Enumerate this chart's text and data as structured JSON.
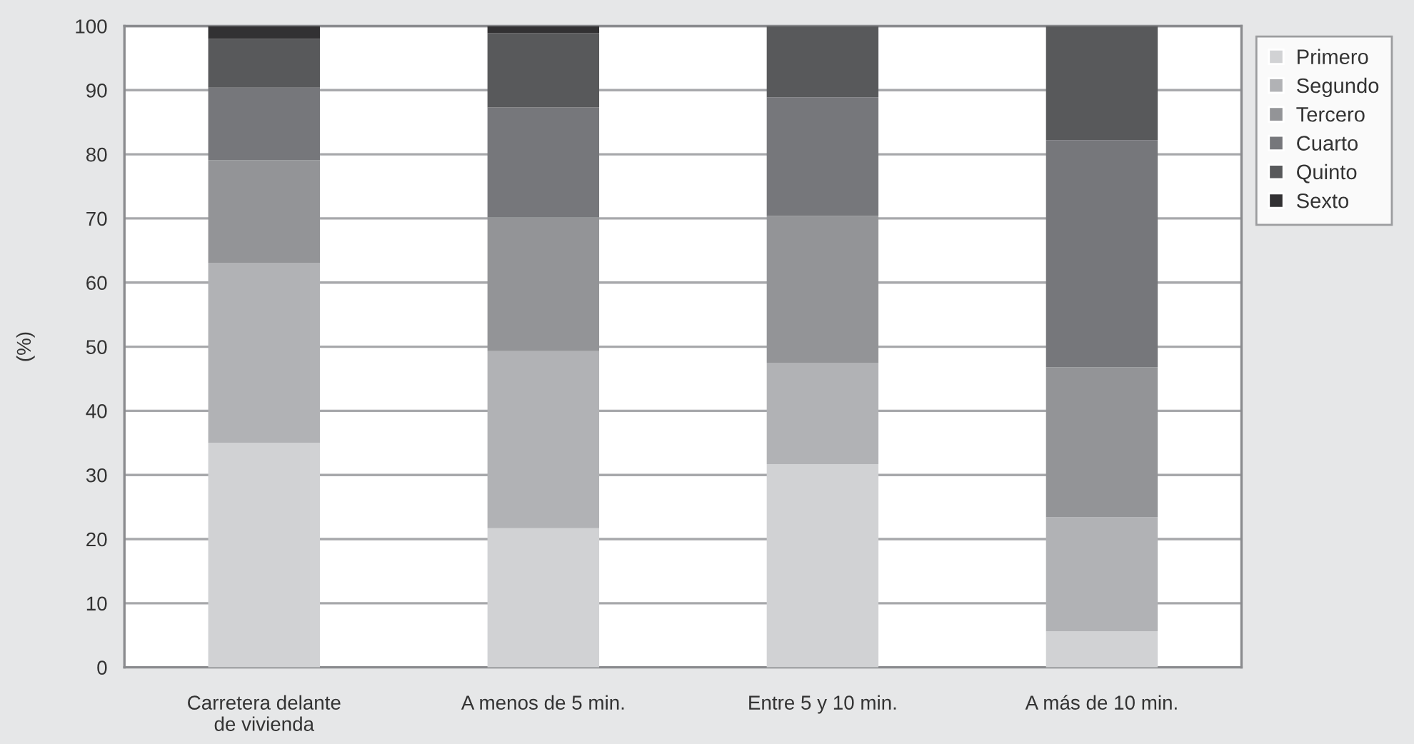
{
  "chart_data": {
    "type": "bar",
    "stacked": true,
    "ylabel": "(%)",
    "categories": [
      "Carretera delante\nde vivienda",
      "A menos de 5 min.",
      "Entre 5 y 10 min.",
      "A más de 10 min."
    ],
    "series": [
      {
        "name": "Primero",
        "color": "#d1d2d4",
        "values": [
          35.0,
          21.7,
          31.7,
          5.6
        ]
      },
      {
        "name": "Segundo",
        "color": "#b1b2b5",
        "values": [
          28.1,
          27.6,
          15.8,
          17.8
        ]
      },
      {
        "name": "Tercero",
        "color": "#939497",
        "values": [
          16.0,
          20.9,
          22.9,
          23.4
        ]
      },
      {
        "name": "Cuarto",
        "color": "#76777b",
        "values": [
          11.3,
          17.1,
          18.5,
          35.4
        ]
      },
      {
        "name": "Quinto",
        "color": "#58595b",
        "values": [
          7.6,
          11.6,
          11.1,
          17.8
        ]
      },
      {
        "name": "Sexto",
        "color": "#323133",
        "values": [
          2.0,
          1.1,
          0,
          0
        ]
      }
    ],
    "ylim": [
      0,
      100
    ],
    "yticks": [
      0,
      10,
      20,
      30,
      40,
      50,
      60,
      70,
      80,
      90,
      100
    ],
    "grid": "y",
    "legend": "right"
  }
}
